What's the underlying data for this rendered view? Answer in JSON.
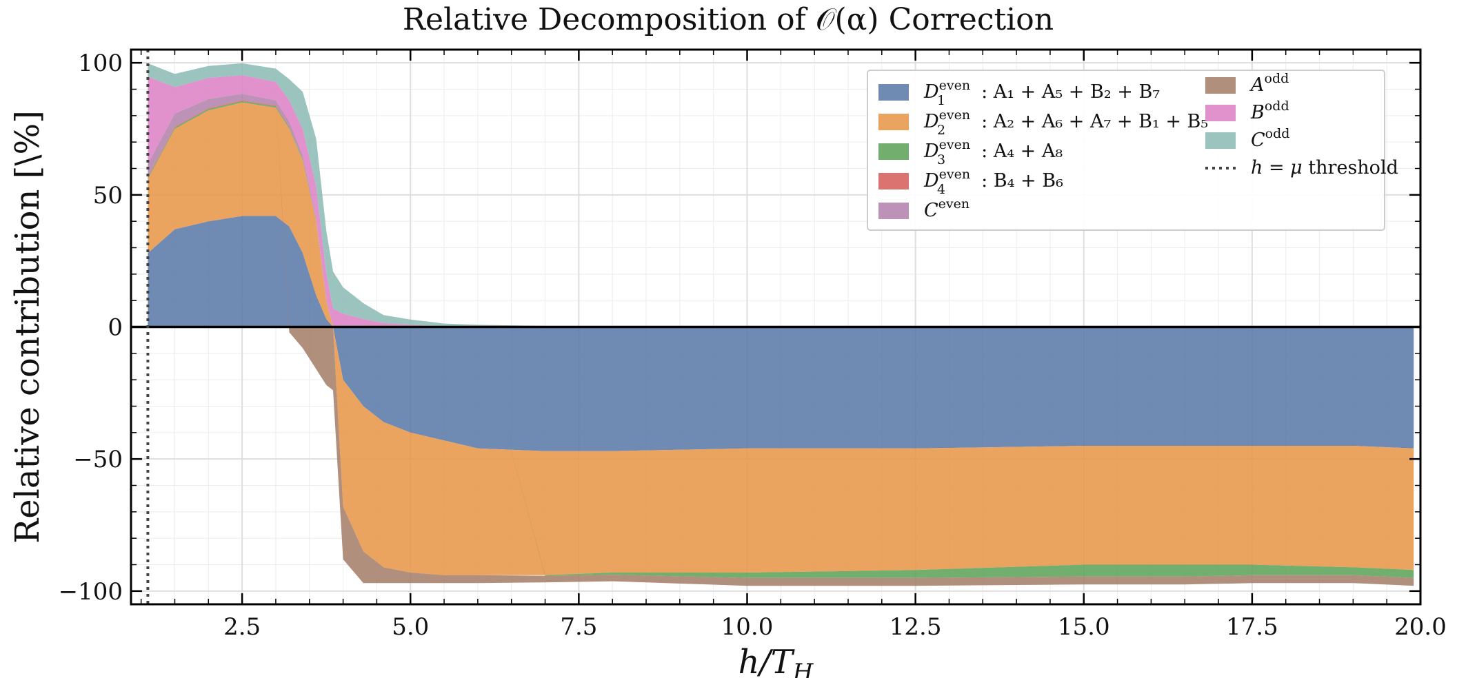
{
  "chart_data": {
    "type": "area",
    "title": "Relative Decomposition of 𝒪(α) Correction",
    "xlabel": "h/T",
    "xlabel_sub": "H",
    "ylabel": "Relative contribution [\\%]",
    "xlim": [
      0.85,
      20.0
    ],
    "ylim": [
      -105,
      105
    ],
    "xticks": [
      2.5,
      5.0,
      7.5,
      10.0,
      12.5,
      15.0,
      17.5,
      20.0
    ],
    "xtick_labels": [
      "2.5",
      "5.0",
      "7.5",
      "10.0",
      "12.5",
      "15.0",
      "17.5",
      "20.0"
    ],
    "yticks": [
      -100,
      -50,
      0,
      50,
      100
    ],
    "ytick_labels": [
      "−100",
      "−50",
      "0",
      "50",
      "100"
    ],
    "grid": true,
    "legend_position": "top-right",
    "threshold": {
      "x": 1.1,
      "label": "h = μ threshold",
      "label_italic": "h = μ",
      "label_rest": " threshold"
    },
    "x": [
      1.1,
      1.5,
      2.0,
      2.5,
      3.0,
      3.2,
      3.4,
      3.6,
      3.75,
      3.85,
      4.0,
      4.3,
      4.6,
      5.0,
      5.5,
      6.0,
      7.0,
      8.0,
      10.0,
      12.5,
      15.0,
      16.5,
      17.5,
      19.0,
      19.9
    ],
    "series": [
      {
        "name": "D1even",
        "label": {
          "base": "D",
          "sub": "1",
          "sup": "even",
          "rest": ": A₁ + A₅ + B₂ + B₇"
        },
        "color": "#5b7aa8",
        "values": [
          28,
          37,
          40,
          42,
          42,
          38,
          28,
          12,
          3,
          0,
          -20,
          -30,
          -36,
          -40,
          -43,
          -46,
          -47,
          -47,
          -46,
          -46,
          -45,
          -45,
          -45,
          -45,
          -46
        ]
      },
      {
        "name": "D2even",
        "label": {
          "base": "D",
          "sub": "2",
          "sup": "even",
          "rest": ": A₂ + A₆ + A₇ + B₁ + B₅"
        },
        "color": "#e8964a",
        "values": [
          28,
          38,
          42,
          43,
          41,
          37,
          35,
          28,
          7,
          0,
          -48,
          -55,
          -55,
          -53,
          -51,
          -48,
          -47,
          -46,
          -47,
          -46,
          -45,
          -45,
          -45,
          -46,
          -46
        ]
      },
      {
        "name": "D3even",
        "label": {
          "base": "D",
          "sub": "3",
          "sup": "even",
          "rest": ": A₄ + A₈"
        },
        "color": "#5fa35a",
        "values": [
          0.5,
          0.5,
          0.5,
          0.5,
          0.5,
          0.5,
          0.3,
          0.2,
          0,
          0,
          0,
          0,
          0,
          0,
          0,
          0,
          -0.2,
          -0.8,
          -2,
          -3,
          -4.5,
          -4.5,
          -4,
          -3,
          -3
        ]
      },
      {
        "name": "D4even",
        "label": {
          "base": "D",
          "sub": "4",
          "sup": "even",
          "rest": ": B₄ + B₆"
        },
        "color": "#d6615c",
        "values": [
          0.3,
          0.3,
          0.3,
          0.3,
          0.3,
          0.3,
          0.2,
          0.1,
          0,
          0,
          0,
          0,
          0,
          0,
          0,
          0,
          0,
          0,
          0,
          0,
          0,
          0,
          0,
          0,
          0
        ]
      },
      {
        "name": "Ceven",
        "label": {
          "base": "C",
          "sub": "",
          "sup": "even",
          "rest": ""
        },
        "color": "#b383ad",
        "values": [
          5,
          5,
          3.5,
          2.5,
          2,
          2,
          1.5,
          1,
          0.5,
          0,
          0,
          0,
          0,
          0,
          0,
          0,
          0,
          0,
          0,
          0,
          0,
          0,
          0,
          0,
          0
        ]
      },
      {
        "name": "Aodd",
        "label": {
          "base": "A",
          "sub": "",
          "sup": "odd",
          "rest": ""
        },
        "color": "#a67f6b",
        "values": [
          0,
          0,
          0,
          0,
          0,
          -2,
          -8,
          -16,
          -22,
          -24,
          -20,
          -12,
          -6,
          -4,
          -3,
          -3,
          -2.5,
          -2.5,
          -3,
          -3,
          -3,
          -3,
          -3,
          -3,
          -3
        ]
      },
      {
        "name": "Bodd",
        "label": {
          "base": "B",
          "sub": "",
          "sup": "odd",
          "rest": ""
        },
        "color": "#dd82c4",
        "values": [
          33,
          10,
          8,
          7,
          7,
          8,
          10,
          12,
          10,
          7,
          5,
          3,
          1.5,
          0.8,
          0.3,
          0.2,
          0.1,
          0,
          0,
          0,
          0,
          0,
          0,
          0,
          0
        ]
      },
      {
        "name": "Codd",
        "label": {
          "base": "C",
          "sub": "",
          "sup": "odd",
          "rest": ""
        },
        "color": "#8dbcb5",
        "values": [
          5,
          5,
          4.5,
          4.5,
          5,
          8,
          14,
          18,
          16,
          14,
          10,
          6,
          3,
          2,
          1,
          0.6,
          0.3,
          0.2,
          0,
          0,
          0,
          0,
          0,
          0,
          0
        ]
      }
    ]
  }
}
